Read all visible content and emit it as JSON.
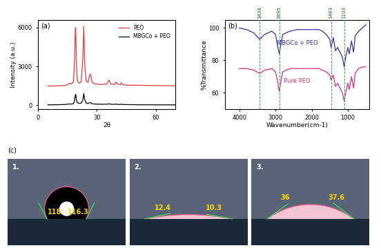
{
  "chart_data": [
    {
      "type": "line",
      "title": "(a)",
      "x_label": "2θ",
      "y_label": "Intensity (a.u.)",
      "x": [
        5,
        10,
        14,
        15,
        16,
        17,
        18,
        18.5,
        19,
        19.2,
        19.5,
        20,
        21,
        22,
        22.8,
        23.3,
        23.8,
        24.5,
        25.5,
        26.2,
        26.8,
        27.5,
        29,
        32,
        35,
        36.2,
        37,
        39,
        39.8,
        40.5,
        42,
        42.5,
        43,
        45,
        50,
        55,
        60,
        65,
        70
      ],
      "series": [
        {
          "name": "PEO",
          "color": "#e03a3a",
          "values": [
            1480,
            1500,
            1530,
            1600,
            1700,
            1650,
            1800,
            3000,
            5900,
            6000,
            3500,
            1900,
            1700,
            1800,
            3500,
            6100,
            3200,
            1900,
            1750,
            2300,
            2400,
            1800,
            1650,
            1600,
            1650,
            1950,
            1650,
            1600,
            1800,
            1650,
            1600,
            1750,
            1600,
            1550,
            1550,
            1530,
            1520,
            1510,
            1500
          ]
        },
        {
          "name": "MBGCo + PEO",
          "color": "#000000",
          "values": [
            30,
            40,
            60,
            80,
            100,
            90,
            120,
            300,
            800,
            850,
            450,
            200,
            150,
            160,
            400,
            900,
            420,
            180,
            130,
            200,
            210,
            120,
            90,
            80,
            80,
            110,
            80,
            70,
            90,
            70,
            60,
            80,
            60,
            50,
            40,
            35,
            30,
            30,
            30
          ]
        }
      ],
      "xlim": [
        0,
        70
      ],
      "xticks": [
        0,
        30,
        60
      ],
      "ylim": [
        -300,
        6600
      ],
      "yticks": [
        0,
        3000,
        6000
      ],
      "grid": false,
      "legend": "upper right"
    },
    {
      "type": "line",
      "title": "(b)",
      "x_label": "Wavenumber(cm-1)",
      "y_label": "%Transmittance",
      "x": [
        4000,
        3800,
        3600,
        3438,
        3300,
        3100,
        3000,
        2950,
        2895,
        2850,
        2800,
        2600,
        2400,
        2200,
        2000,
        1800,
        1700,
        1600,
        1500,
        1463,
        1400,
        1343,
        1280,
        1240,
        1150,
        1103,
        1060,
        1000,
        960,
        900,
        842,
        800,
        700,
        600,
        500
      ],
      "series": [
        {
          "name": "MBGCo + PEO",
          "color": "#3a2fa0",
          "values": [
            100,
            99,
            97,
            93,
            96,
            98,
            96,
            90,
            84,
            90,
            96,
            98,
            99,
            99,
            99,
            99,
            98,
            96,
            93,
            88,
            94,
            86,
            88,
            86,
            82,
            76,
            82,
            88,
            84,
            92,
            85,
            95,
            98,
            100,
            102
          ]
        },
        {
          "name": "Pure PEO",
          "color": "#d9307a",
          "values": [
            75,
            75,
            74,
            72,
            74,
            75,
            73,
            68,
            61,
            67,
            73,
            75,
            75,
            75,
            75,
            75,
            74,
            73,
            71,
            68,
            71,
            64,
            66,
            64,
            60,
            55,
            60,
            66,
            62,
            70,
            63,
            72,
            75,
            76,
            76
          ]
        }
      ],
      "xlim": [
        4400,
        400
      ],
      "xticks": [
        4000,
        3000,
        2000,
        1000
      ],
      "ylim": [
        50,
        105
      ],
      "yticks": [
        60,
        80,
        100
      ],
      "grid": false,
      "annotations": [
        3438,
        2895,
        1463,
        1103
      ]
    }
  ],
  "contact_angles": {
    "label": "(c)",
    "samples": [
      {
        "label": "1.",
        "left": 118,
        "right": 116.3
      },
      {
        "label": "2.",
        "left": 12.4,
        "right": 10.3
      },
      {
        "label": "3.",
        "left": 36,
        "right": 37.6
      }
    ]
  }
}
